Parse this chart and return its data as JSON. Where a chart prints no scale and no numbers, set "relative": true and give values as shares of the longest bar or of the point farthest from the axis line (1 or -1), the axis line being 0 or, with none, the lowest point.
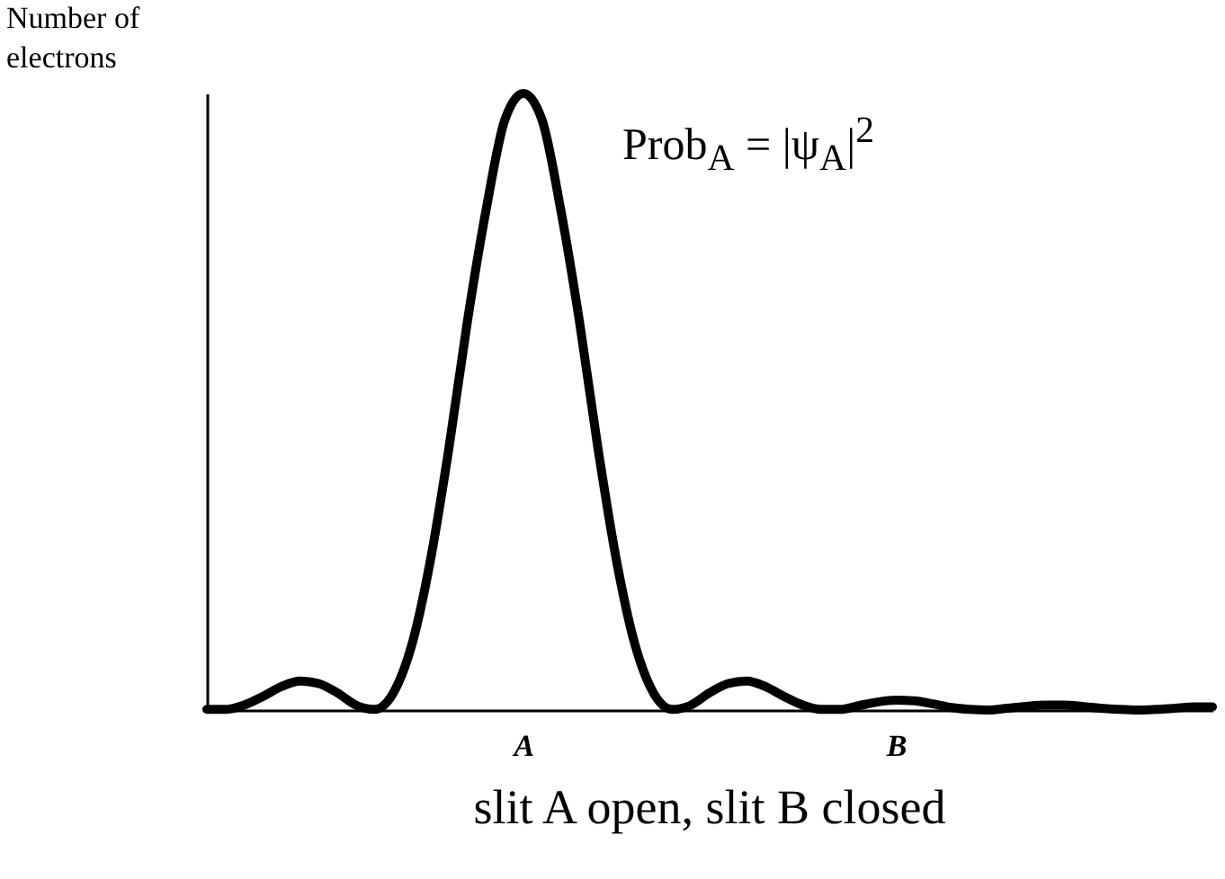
{
  "chart_data": {
    "type": "line",
    "relative": true,
    "ylabel": "Number of electrons",
    "title": "slit A open, slit B closed",
    "annotations": [
      "Prob$_{A}$ = |ψ$_{A}$|$^{2}$"
    ],
    "categories": [
      null,
      null,
      null,
      null,
      null,
      null,
      null,
      null,
      null,
      null,
      null,
      null,
      null,
      null,
      null,
      null,
      null,
      "A",
      null,
      null,
      null,
      null,
      null,
      null,
      null,
      null,
      null,
      null,
      null,
      null,
      null,
      null,
      null,
      null,
      null,
      null,
      null,
      "B",
      null,
      null,
      null,
      null,
      null,
      null,
      null,
      null,
      null,
      null,
      null,
      null,
      null,
      null,
      null,
      null,
      null
    ],
    "series": [
      {
        "color": "#000000",
        "values": [
          0.001,
          0.001,
          0.008,
          0.022,
          0.038,
          0.047,
          0.043,
          0.028,
          0.008,
          0.001,
          0.027,
          0.105,
          0.242,
          0.425,
          0.632,
          0.812,
          0.957,
          1,
          0.957,
          0.812,
          0.632,
          0.425,
          0.242,
          0.105,
          0.027,
          0.001,
          0.008,
          0.028,
          0.043,
          0.047,
          0.038,
          0.022,
          0.008,
          0.001,
          0.001,
          0.007,
          0.013,
          0.016,
          0.015,
          0.01,
          0.004,
          0.001,
          0,
          0.003,
          0.006,
          0.008,
          0.008,
          0.006,
          0.003,
          0.001,
          0,
          0.001,
          0.003,
          0.005,
          0.005
        ]
      }
    ],
    "grid": false,
    "legend": false,
    "marker": "none",
    "line_style": "solid"
  }
}
